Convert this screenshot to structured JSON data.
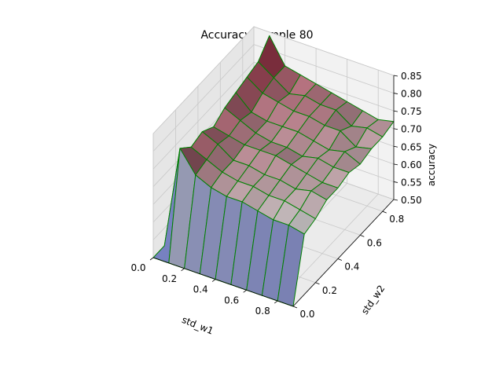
{
  "chart_data": {
    "type": "surface3d",
    "title": "Accuracy Sample 80",
    "xlabel": "std_w1",
    "ylabel": "std_w2",
    "zlabel": "accuracy",
    "x_ticks": [
      "0.0",
      "0.2",
      "0.4",
      "0.6",
      "0.8"
    ],
    "y_ticks": [
      "0.0",
      "0.2",
      "0.4",
      "0.6",
      "0.8"
    ],
    "z_ticks": [
      "0.50",
      "0.55",
      "0.60",
      "0.65",
      "0.70",
      "0.75",
      "0.80",
      "0.85"
    ],
    "xlim": [
      0,
      0.9
    ],
    "ylim": [
      0,
      0.9
    ],
    "zlim": [
      0.5,
      0.85
    ],
    "grid": true,
    "edge_color": "#008000",
    "x": [
      0.0,
      0.1,
      0.2,
      0.3,
      0.4,
      0.5,
      0.6,
      0.7,
      0.8,
      0.9
    ],
    "y": [
      0.0,
      0.1,
      0.2,
      0.3,
      0.4,
      0.5,
      0.6,
      0.7,
      0.8,
      0.9
    ],
    "z": [
      [
        0.5,
        0.5,
        0.5,
        0.5,
        0.5,
        0.5,
        0.5,
        0.5,
        0.5,
        0.5
      ],
      [
        0.5,
        0.79,
        0.76,
        0.77,
        0.75,
        0.77,
        0.78,
        0.79,
        0.8,
        0.84
      ],
      [
        0.5,
        0.73,
        0.74,
        0.75,
        0.74,
        0.75,
        0.74,
        0.76,
        0.77,
        0.77
      ],
      [
        0.5,
        0.71,
        0.72,
        0.72,
        0.73,
        0.73,
        0.73,
        0.75,
        0.74,
        0.76
      ],
      [
        0.5,
        0.7,
        0.71,
        0.72,
        0.73,
        0.72,
        0.73,
        0.74,
        0.75,
        0.75
      ],
      [
        0.5,
        0.7,
        0.71,
        0.71,
        0.73,
        0.72,
        0.73,
        0.74,
        0.74,
        0.74
      ],
      [
        0.5,
        0.69,
        0.7,
        0.71,
        0.72,
        0.71,
        0.72,
        0.73,
        0.74,
        0.73
      ],
      [
        0.5,
        0.68,
        0.7,
        0.7,
        0.71,
        0.72,
        0.71,
        0.73,
        0.71,
        0.72
      ],
      [
        0.5,
        0.68,
        0.69,
        0.71,
        0.7,
        0.71,
        0.72,
        0.7,
        0.72,
        0.71
      ],
      [
        0.5,
        0.67,
        0.68,
        0.7,
        0.7,
        0.71,
        0.7,
        0.71,
        0.71,
        0.72
      ]
    ]
  }
}
